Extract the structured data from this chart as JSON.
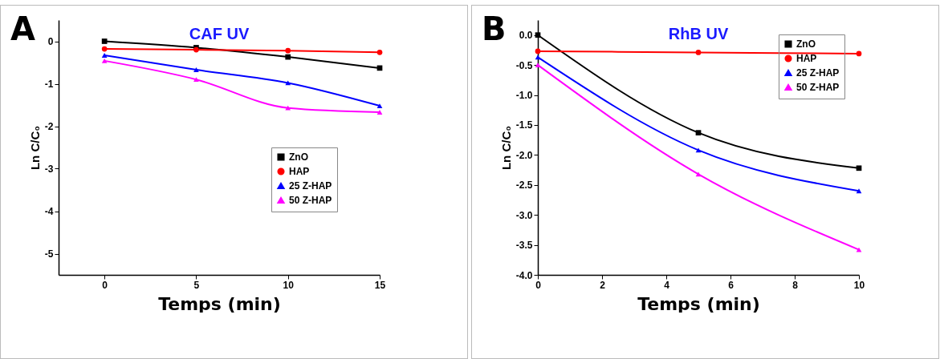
{
  "chart_data": [
    {
      "type": "line",
      "title": "CAF UV",
      "xlabel": "Temps (min)",
      "ylabel": "Ln C/C₀",
      "annotations": [
        "A"
      ],
      "xlim": [
        -2.5,
        15
      ],
      "xticks": [
        0,
        5,
        10,
        15
      ],
      "ylim": [
        -5.5,
        0.5
      ],
      "yticks": [
        0,
        -1,
        -2,
        -3,
        -4,
        -5
      ],
      "grid": false,
      "legend": "right",
      "line_style": "solid",
      "x": [
        0,
        5,
        10,
        15
      ],
      "series": [
        {
          "name": "ZnO",
          "color": "#000000",
          "marker": "square",
          "values": [
            0,
            -0.15,
            -0.37,
            -0.63
          ]
        },
        {
          "name": "HAP",
          "color": "#ff0000",
          "marker": "circle",
          "values": [
            -0.18,
            -0.2,
            -0.22,
            -0.26
          ]
        },
        {
          "name": "25 Z-HAP",
          "color": "#0000ff",
          "marker": "triangle",
          "values": [
            -0.33,
            -0.67,
            -0.98,
            -1.52
          ]
        },
        {
          "name": "50 Z-HAP",
          "color": "#ff00ff",
          "marker": "triangle",
          "values": [
            -0.46,
            -0.9,
            -1.57,
            -1.67
          ]
        }
      ]
    },
    {
      "type": "line",
      "title": "RhB UV",
      "xlabel": "Temps (min)",
      "ylabel": "Ln C/C₀",
      "annotations": [
        "B"
      ],
      "xlim": [
        0,
        10
      ],
      "xticks": [
        0,
        2,
        4,
        6,
        8,
        10
      ],
      "ylim": [
        -4,
        0.25
      ],
      "yticks": [
        {
          "value": 0,
          "label": "0.0"
        },
        -0.5,
        {
          "value": -1,
          "label": "-1.0"
        },
        -1.5,
        {
          "value": -2,
          "label": "-2.0"
        },
        -2.5,
        {
          "value": -3,
          "label": "-3.0"
        },
        -3.5,
        {
          "value": -4,
          "label": "-4.0"
        }
      ],
      "grid": false,
      "legend": "top right",
      "line_style": "solid",
      "x": [
        0,
        5,
        10
      ],
      "series": [
        {
          "name": "ZnO",
          "color": "#000000",
          "marker": "square",
          "values": [
            0,
            -1.63,
            -2.22
          ]
        },
        {
          "name": "HAP",
          "color": "#ff0000",
          "marker": "circle",
          "values": [
            -0.27,
            -0.29,
            -0.31
          ]
        },
        {
          "name": "25 Z-HAP",
          "color": "#0000ff",
          "marker": "triangle",
          "values": [
            -0.37,
            -1.92,
            -2.6
          ]
        },
        {
          "name": "50 Z-HAP",
          "color": "#ff00ff",
          "marker": "triangle",
          "values": [
            -0.5,
            -2.32,
            -3.58
          ]
        }
      ]
    }
  ]
}
